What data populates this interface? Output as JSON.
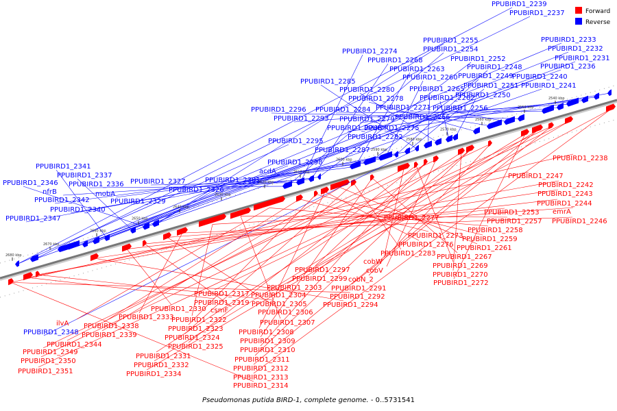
{
  "caption": {
    "organism": "Pseudomonas putida BIRD-1, complete genome.",
    "range": " - 0..5731541"
  },
  "legend": [
    {
      "label": "Forward",
      "color": "#ff0000"
    },
    {
      "label": "Reverse",
      "color": "#0000ff"
    }
  ],
  "ticks": [
    "2540 kbp",
    "2550 kbp",
    "2560 kbp",
    "2570 kbp",
    "2580 kbp",
    "2590 kbp",
    "2600 kbp",
    "2610 kbp",
    "2620 kbp",
    "2630 kbp",
    "2640 kbp",
    "2650 kbp",
    "2660 kbp",
    "2670 kbp",
    "2680 kbp"
  ],
  "reverse_labels": [
    "PPUBIRD1_2239",
    "PPUBIRD1_2237",
    "PPUBIRD1_2233",
    "PPUBIRD1_2232",
    "PPUBIRD1_2231",
    "PPUBIRD1_2236",
    "PPUBIRD1_2240",
    "PPUBIRD1_2241",
    "PPUBIRD1_2255",
    "PPUBIRD1_2254",
    "PPUBIRD1_2274",
    "PPUBIRD1_2268",
    "PPUBIRD1_2252",
    "PPUBIRD1_2263",
    "PPUBIRD1_2248",
    "PPUBIRD1_2260",
    "PPUBIRD1_2249",
    "PPUBIRD1_2251",
    "PPUBIRD1_2285",
    "PPUBIRD1_2265",
    "PPUBIRD1_2280",
    "PPUBIRD1_2262",
    "PPUBIRD1_2250",
    "PPUBIRD1_2278",
    "PPUBIRD1_2271",
    "PPUBIRD1_2256",
    "PPUBIRD1_2296",
    "PPUBIRD1_2284",
    "PPUBIRD1_2266",
    "PPUBIRD1_2293",
    "PPUBIRD1_2279",
    "PPUBIRD1_2286",
    "PPUBIRD1_2275",
    "PPUBIRD1_2295",
    "PPUBIRD1_2282",
    "PPUBIRD1_2287",
    "PPUBIRD1_2298",
    "acdA",
    "PPUBIRD1_2341",
    "PPUBIRD1_2337",
    "PPUBIRD1_2346",
    "PPUBIRD1_2301",
    "PPUBIRD1_2336",
    "PPUBIRD1_2327",
    "nfrB",
    "PPUBIRD1_2326",
    "mobA",
    "PPUBIRD1_2342",
    "PPUBIRD1_2329",
    "PPUBIRD1_2340",
    "PPUBIRD1_2347",
    "PPUBIRD1_2348"
  ],
  "forward_labels": [
    "PPUBIRD1_2238",
    "PPUBIRD1_2247",
    "PPUBIRD1_2242",
    "PPUBIRD1_2243",
    "PPUBIRD1_2244",
    "PPUBIRD1_2253",
    "emrA",
    "PPUBIRD1_2246",
    "PPUBIRD1_2277",
    "PPUBIRD1_2257",
    "PPUBIRD1_2258",
    "PPUBIRD1_2273",
    "PPUBIRD1_2259",
    "PPUBIRD1_2276",
    "PPUBIRD1_2261",
    "PPUBIRD1_2283",
    "PPUBIRD1_2267",
    "cobW",
    "PPUBIRD1_2269",
    "PPUBIRD1_2297",
    "cobV",
    "PPUBIRD1_2270",
    "PPUBIRD1_2299",
    "cobN_2",
    "PPUBIRD1_2272",
    "PPUBIRD1_2303",
    "PPUBIRD1_2291",
    "PPUBIRD1_2317",
    "PPUBIRD1_2304",
    "PPUBIRD1_2292",
    "PPUBIRD1_2319",
    "PPUBIRD1_2305",
    "PPUBIRD1_2294",
    "PPUBIRD1_2330",
    "csmF",
    "PPUBIRD1_2306",
    "PPUBIRD1_2333",
    "PPUBIRD1_2322",
    "PPUBIRD1_2307",
    "ilvA",
    "PPUBIRD1_2338",
    "PPUBIRD1_2323",
    "PPUBIRD1_2308",
    "PPUBIRD1_2339",
    "PPUBIRD1_2324",
    "PPUBIRD1_2309",
    "PPUBIRD1_2344",
    "PPUBIRD1_2325",
    "PPUBIRD1_2310",
    "PPUBIRD1_2349",
    "PPUBIRD1_2331",
    "PPUBIRD1_2311",
    "PPUBIRD1_2350",
    "PPUBIRD1_2332",
    "PPUBIRD1_2312",
    "PPUBIRD1_2351",
    "PPUBIRD1_2334",
    "PPUBIRD1_2313",
    "PPUBIRD1_2314"
  ]
}
